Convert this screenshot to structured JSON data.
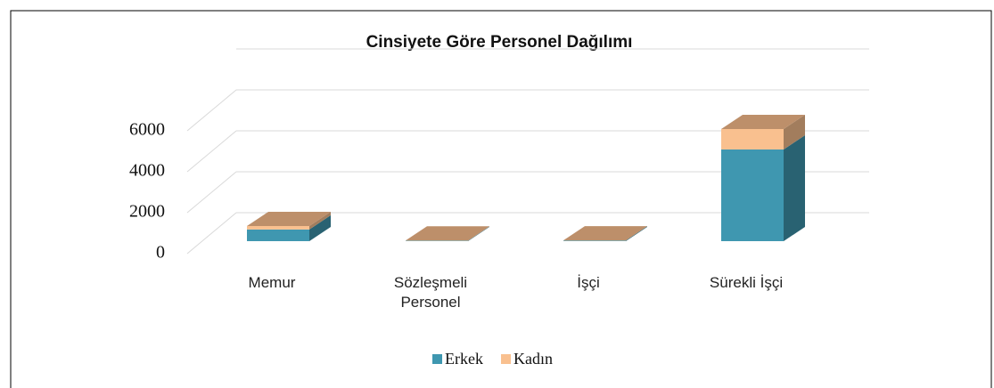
{
  "chart_data": {
    "type": "bar3d_stacked",
    "title": "Cinsiyete Göre Personel Dağılımı",
    "categories": [
      "Memur",
      "Sözleşmeli Personel",
      "İşçi",
      "Sürekli İşçi"
    ],
    "series": [
      {
        "name": "Erkek",
        "color": "#3f97b0",
        "values": [
          570,
          20,
          30,
          4480
        ]
      },
      {
        "name": "Kadın",
        "color": "#f9c08f",
        "values": [
          170,
          10,
          10,
          1000
        ]
      }
    ],
    "ylim": [
      0,
      8000
    ],
    "yticks": [
      0,
      2000,
      4000,
      6000
    ],
    "grid": true,
    "legend": "bottom"
  }
}
